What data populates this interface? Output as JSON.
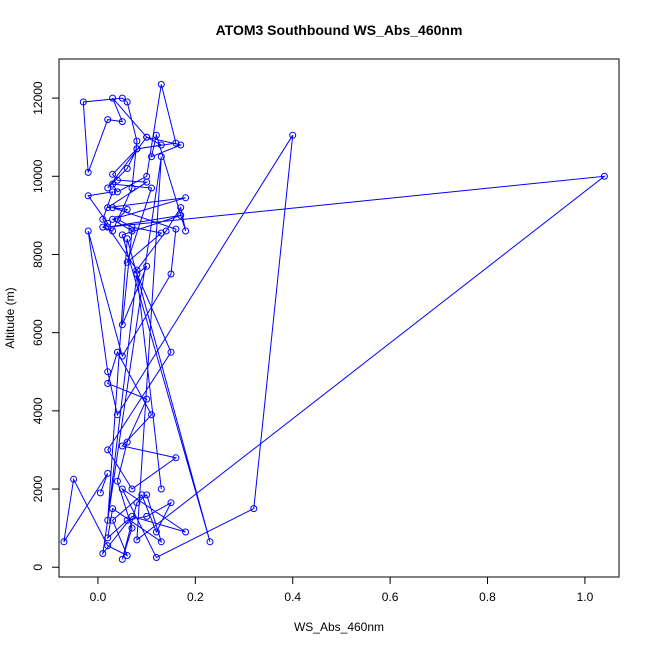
{
  "chart_data": {
    "type": "line",
    "title": "ATOM3 Southbound WS_Abs_460nm",
    "xlabel": "WS_Abs_460nm",
    "ylabel": "Altitude (m)",
    "xlim": [
      -0.08,
      1.07
    ],
    "ylim": [
      -250,
      13000
    ],
    "xticks": [
      0.0,
      0.2,
      0.4,
      0.6,
      0.8,
      1.0
    ],
    "xtick_labels": [
      "0.0",
      "0.2",
      "0.4",
      "0.6",
      "0.8",
      "1.0"
    ],
    "yticks": [
      0,
      2000,
      4000,
      6000,
      8000,
      10000,
      12000
    ],
    "ytick_labels": [
      "0",
      "2000",
      "4000",
      "6000",
      "8000",
      "10000",
      "12000"
    ],
    "grid": false,
    "series": [
      {
        "color": "#0000ff",
        "marker": "open-circle",
        "x": [
          0.005,
          0.02,
          -0.07,
          -0.05,
          0.02,
          0.06,
          0.03,
          0.09,
          0.12,
          0.15,
          0.1,
          0.06,
          0.02,
          0.03,
          0.13,
          0.1,
          0.08,
          0.05,
          0.07,
          0.04,
          0.06,
          0.1,
          0.02,
          0.04,
          0.11,
          0.05,
          0.16,
          0.07,
          0.02,
          0.15,
          0.08,
          0.1,
          0.05,
          0.07,
          0.03,
          0.18,
          0.02,
          0.1,
          0.04,
          0.03,
          0.08,
          0.06,
          0.02,
          0.1,
          0.17,
          0.11,
          0.12,
          0.18,
          0.17,
          0.14,
          0.08,
          0.01,
          0.03,
          -0.02,
          0.02,
          0.01,
          0.03,
          0.07,
          0.08,
          0.06,
          0.05,
          -0.03,
          -0.02,
          0.02,
          0.05,
          0.03,
          0.1,
          0.13,
          0.08,
          0.16,
          0.13,
          0.1,
          0.04,
          0.03,
          0.11,
          0.06,
          0.13,
          0.07,
          0.04,
          0.06,
          0.03,
          0.16,
          0.15,
          0.05,
          -0.02,
          0.02,
          0.04,
          0.4,
          0.32,
          0.12,
          0.05,
          0.18,
          0.07,
          0.01,
          0.13,
          0.08,
          1.04,
          0.02,
          0.17,
          0.05,
          0.23,
          0.06,
          0.02,
          0.08,
          0.13
        ],
        "y": [
          1900,
          2400,
          650,
          2250,
          550,
          300,
          1200,
          1850,
          900,
          1650,
          1300,
          1200,
          750,
          1500,
          650,
          1850,
          1650,
          200,
          1000,
          2200,
          3200,
          4300,
          4700,
          5500,
          3900,
          3100,
          2800,
          2000,
          3000,
          5500,
          7500,
          7700,
          6200,
          8600,
          8900,
          9450,
          9200,
          9850,
          9900,
          10050,
          10700,
          10200,
          9700,
          11000,
          10800,
          10500,
          11050,
          8600,
          9200,
          8600,
          7600,
          8900,
          9600,
          9500,
          8800,
          8700,
          8600,
          9700,
          10900,
          11900,
          12000,
          11900,
          10100,
          11450,
          11400,
          12000,
          11000,
          10800,
          10700,
          10850,
          12350,
          10000,
          9600,
          9800,
          9700,
          7800,
          8550,
          8700,
          8900,
          9150,
          9200,
          8650,
          7500,
          5400,
          8600,
          5000,
          3900,
          11050,
          1500,
          250,
          2000,
          900,
          1300,
          350,
          10500,
          700,
          10000,
          8700,
          9000,
          8500,
          650,
          8400,
          1200,
          7500,
          2000
        ]
      }
    ]
  }
}
